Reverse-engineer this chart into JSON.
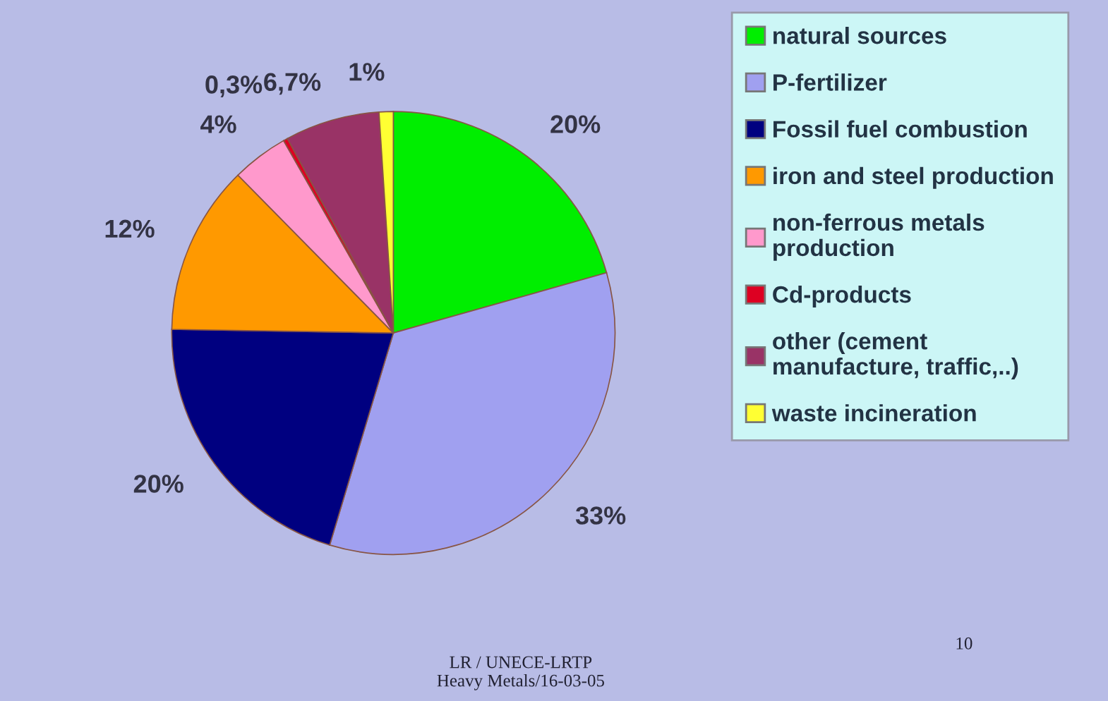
{
  "chart_data": {
    "type": "pie",
    "categories": [
      "natural sources",
      "P-fertilizer",
      "Fossil fuel combustion",
      "iron and steel production",
      "non-ferrous metals\nproduction",
      "Cd-products",
      "other (cement\nmanufacture, traffic,..)",
      "waste incineration"
    ],
    "values": [
      20,
      33,
      20,
      12,
      4,
      0.3,
      6.7,
      1
    ],
    "value_labels": [
      "20%",
      "33%",
      "20%",
      "12%",
      "4%",
      "0,3%",
      "6,7%",
      "1%"
    ],
    "colors": [
      "#00ee00",
      "#a0a0f0",
      "#000080",
      "#ff9900",
      "#ff99cc",
      "#dd0022",
      "#993366",
      "#ffff33"
    ],
    "legend": "right",
    "annotations": [
      "LR / UNECE-LRTP\nHeavy Metals/16-03-05",
      "10"
    ]
  }
}
